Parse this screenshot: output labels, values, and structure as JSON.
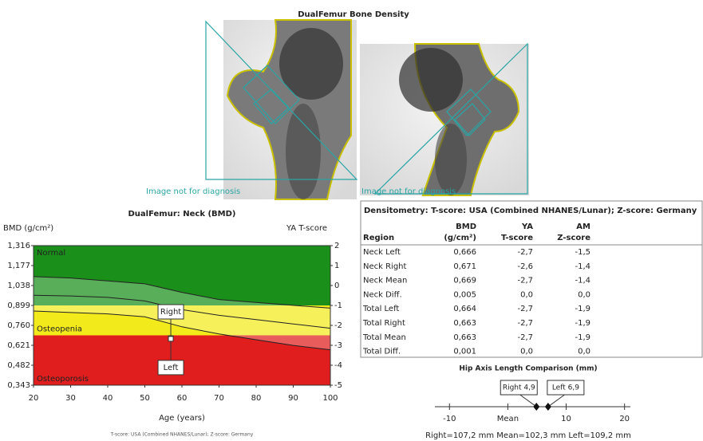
{
  "title": "DualFemur Bone Density",
  "images": [
    {
      "caption": "Image not for diagnosis"
    },
    {
      "caption": "Image not for diagnosis"
    }
  ],
  "chart_data": {
    "type": "reference-curve",
    "title": "DualFemur: Neck (BMD)",
    "y_label": "BMD (g/cm²)",
    "y2_label": "YA T-score",
    "x_label": "Age (years)",
    "footnote": "T-score: USA (Combined NHANES/Lunar); Z-score: Germany",
    "xlim": [
      20,
      100
    ],
    "xticks": [
      20,
      30,
      40,
      50,
      60,
      70,
      80,
      90,
      100
    ],
    "ylim": [
      0.343,
      1.316
    ],
    "yticks": [
      {
        "value": 0.343,
        "label": "0,343"
      },
      {
        "value": 0.482,
        "label": "0,482"
      },
      {
        "value": 0.621,
        "label": "0,621"
      },
      {
        "value": 0.76,
        "label": "0,760"
      },
      {
        "value": 0.899,
        "label": "0,899"
      },
      {
        "value": 1.038,
        "label": "1,038"
      },
      {
        "value": 1.177,
        "label": "1,177"
      },
      {
        "value": 1.316,
        "label": "1,316"
      }
    ],
    "y2lim": [
      -5,
      2
    ],
    "y2ticks": [
      -5,
      -4,
      -3,
      -2,
      -1,
      0,
      1,
      2
    ],
    "zones": [
      {
        "name": "Normal",
        "from": -1,
        "to": 2,
        "color": "#1a8f1a"
      },
      {
        "name": "Osteopenia",
        "from": -2.5,
        "to": -1,
        "color": "#f3ea1c"
      },
      {
        "name": "Osteoporosis",
        "from": -5,
        "to": -2.5,
        "color": "#e01e1e"
      }
    ],
    "x": [
      20,
      30,
      40,
      50,
      60,
      70,
      80,
      90,
      100
    ],
    "series": [
      {
        "color": "#222222",
        "values": [
          1.1,
          1.09,
          1.07,
          1.05,
          0.99,
          0.94,
          0.92,
          0.9,
          0.88
        ]
      },
      {
        "color": "#222222",
        "values": [
          0.97,
          0.965,
          0.955,
          0.93,
          0.87,
          0.83,
          0.8,
          0.77,
          0.74
        ]
      },
      {
        "color": "#222222",
        "values": [
          0.86,
          0.85,
          0.84,
          0.82,
          0.75,
          0.7,
          0.66,
          0.62,
          0.59
        ]
      }
    ],
    "points": [
      {
        "label": "Right",
        "x": 57,
        "y": 0.671
      },
      {
        "label": "Left",
        "x": 57,
        "y": 0.666
      }
    ]
  },
  "table": {
    "title": "Densitometry: T-score: USA (Combined NHANES/Lunar); Z-score: Germany",
    "columns": [
      [
        "Region"
      ],
      [
        "BMD",
        "(g/cm²)"
      ],
      [
        "YA",
        "T-score"
      ],
      [
        "AM",
        "Z-score"
      ]
    ],
    "rows": [
      [
        "Neck Left",
        "0,666",
        "-2,7",
        "-1,5"
      ],
      [
        "Neck Right",
        "0,671",
        "-2,6",
        "-1,4"
      ],
      [
        "Neck Mean",
        "0,669",
        "-2,7",
        "-1,4"
      ],
      [
        "Neck Diff.",
        "0,005",
        "0,0",
        "0,0"
      ],
      [
        "Total Left",
        "0,664",
        "-2,7",
        "-1,9"
      ],
      [
        "Total Right",
        "0,663",
        "-2,7",
        "-1,9"
      ],
      [
        "Total Mean",
        "0,663",
        "-2,7",
        "-1,9"
      ],
      [
        "Total Diff.",
        "0,001",
        "0,0",
        "0,0"
      ]
    ]
  },
  "hip_axis": {
    "title": "Hip Axis Length Comparison (mm)",
    "xlim": [
      -12.5,
      21
    ],
    "xticks": [
      -10,
      {
        "value": 0,
        "label": "Mean"
      },
      10,
      20
    ],
    "markers": [
      {
        "value": 4.9,
        "label": "Right 4,9"
      },
      {
        "value": 6.9,
        "label": "Left 6,9"
      }
    ],
    "footer": "Right=107,2 mm  Mean=102,3 mm  Left=109,2 mm"
  }
}
